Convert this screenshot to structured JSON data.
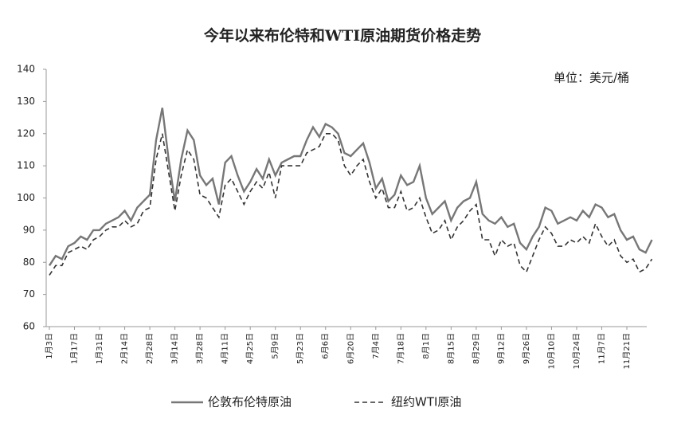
{
  "chart_data": {
    "type": "line",
    "title": "今年以来布伦特和WTI原油期货价格走势",
    "unit_label": "单位：美元/桶",
    "categories": [
      "1月3日",
      null,
      null,
      null,
      "1月17日",
      null,
      null,
      null,
      "1月31日",
      null,
      null,
      null,
      "2月14日",
      null,
      null,
      null,
      "2月28日",
      null,
      null,
      null,
      "3月14日",
      null,
      null,
      null,
      "3月28日",
      null,
      null,
      null,
      "4月11日",
      null,
      null,
      null,
      "4月25日",
      null,
      null,
      null,
      "5月9日",
      null,
      null,
      null,
      "5月23日",
      null,
      null,
      null,
      "6月6日",
      null,
      null,
      null,
      "6月20日",
      null,
      null,
      null,
      "7月4日",
      null,
      null,
      null,
      "7月18日",
      null,
      null,
      null,
      "8月1日",
      null,
      null,
      null,
      "8月15日",
      null,
      null,
      null,
      "8月29日",
      null,
      null,
      null,
      "9月12日",
      null,
      null,
      null,
      "9月26日",
      null,
      null,
      null,
      "10月10日",
      null,
      null,
      null,
      "10月24日",
      null,
      null,
      null,
      "11月7日",
      null,
      null,
      null,
      "11月21日",
      null,
      null,
      null,
      null
    ],
    "series": [
      {
        "name": "伦敦布伦特原油",
        "color": "#777777",
        "line_style": "solid",
        "values": [
          79,
          82,
          81,
          85,
          86,
          88,
          87,
          90,
          90,
          92,
          93,
          94,
          96,
          93,
          97,
          99,
          101,
          118,
          128,
          112,
          99,
          112,
          121,
          118,
          107,
          104,
          106,
          98,
          111,
          113,
          107,
          102,
          105,
          109,
          106,
          112,
          107,
          111,
          112,
          113,
          113,
          118,
          122,
          119,
          123,
          122,
          120,
          114,
          113,
          115,
          117,
          111,
          103,
          106,
          99,
          101,
          107,
          104,
          105,
          110,
          100,
          95,
          97,
          99,
          93,
          97,
          99,
          100,
          105,
          95,
          93,
          92,
          94,
          91,
          92,
          86,
          84,
          88,
          91,
          97,
          96,
          92,
          93,
          94,
          93,
          96,
          94,
          98,
          97,
          94,
          95,
          90,
          87,
          88,
          84,
          83,
          87
        ]
      },
      {
        "name": "纽约WTI原油",
        "color": "#333333",
        "line_style": "dashed",
        "values": [
          76,
          79,
          79,
          83,
          84,
          85,
          84,
          87,
          88,
          90,
          91,
          91,
          93,
          91,
          92,
          96,
          97,
          112,
          120,
          108,
          96,
          107,
          115,
          112,
          101,
          100,
          97,
          94,
          104,
          106,
          102,
          98,
          102,
          105,
          103,
          108,
          100,
          110,
          110,
          110,
          110,
          114,
          115,
          116,
          120,
          120,
          118,
          110,
          107,
          110,
          112,
          105,
          100,
          103,
          97,
          97,
          102,
          96,
          97,
          100,
          94,
          89,
          90,
          93,
          87,
          91,
          93,
          96,
          98,
          87,
          87,
          82,
          87,
          85,
          86,
          79,
          77,
          82,
          87,
          91,
          89,
          85,
          85,
          87,
          86,
          88,
          86,
          92,
          88,
          85,
          87,
          82,
          80,
          81,
          77,
          78,
          81
        ]
      }
    ],
    "ylim": [
      60,
      140
    ],
    "yticks": [
      60,
      70,
      80,
      90,
      100,
      110,
      120,
      130,
      140
    ],
    "grid": false
  }
}
